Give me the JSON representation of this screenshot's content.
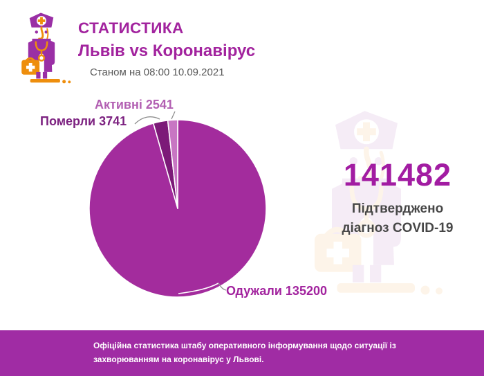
{
  "header": {
    "title": "СТАТИСТИКА",
    "subtitle": "Львів vs Коронавірус",
    "date_line": "Станом на 08:00 10.09.2021"
  },
  "chart_data": {
    "type": "pie",
    "title": "Львів vs Коронавірус",
    "as_of": "Станом на 08:00 10.09.2021",
    "total": 141482,
    "slices": [
      {
        "key": "recovered",
        "label": "Одужали",
        "value": 135200,
        "color": "#A32C9D"
      },
      {
        "key": "died",
        "label": "Померли",
        "value": 3741,
        "color": "#7C1A78"
      },
      {
        "key": "active",
        "label": "Активні",
        "value": 2541,
        "color": "#C876C3"
      }
    ],
    "start_angle_deg": 0,
    "direction": "clockwise",
    "legend_position": "callout-labels"
  },
  "pie_labels": {
    "active": "Активні 2541",
    "died": "Померли 3741",
    "recovered": "Одужали 135200"
  },
  "stats": {
    "number": "141482",
    "caption_line1": "Підтверджено",
    "caption_line2": "діагноз COVID-19"
  },
  "footer": {
    "text": "Офіційна статистика штабу оперативного інформування щодо ситуації із захворюванням на коронавірус у Львові."
  },
  "icons": {
    "header_icon": "doctor-with-medical-bag-icon",
    "watermark_icon": "doctor-with-medical-bag-icon"
  },
  "colors": {
    "accent_magenta": "#A2239E",
    "number_magenta": "#A21CA2",
    "pie_recovered": "#A32C9D",
    "pie_died": "#7C1A78",
    "pie_active": "#C876C3",
    "label_active": "#B25FB2",
    "label_died": "#7C2180",
    "footer_background": "#A02CA4",
    "icon_purple": "#9A2FA5",
    "icon_orange": "#EE8E0D",
    "caption_gray": "#474747"
  }
}
